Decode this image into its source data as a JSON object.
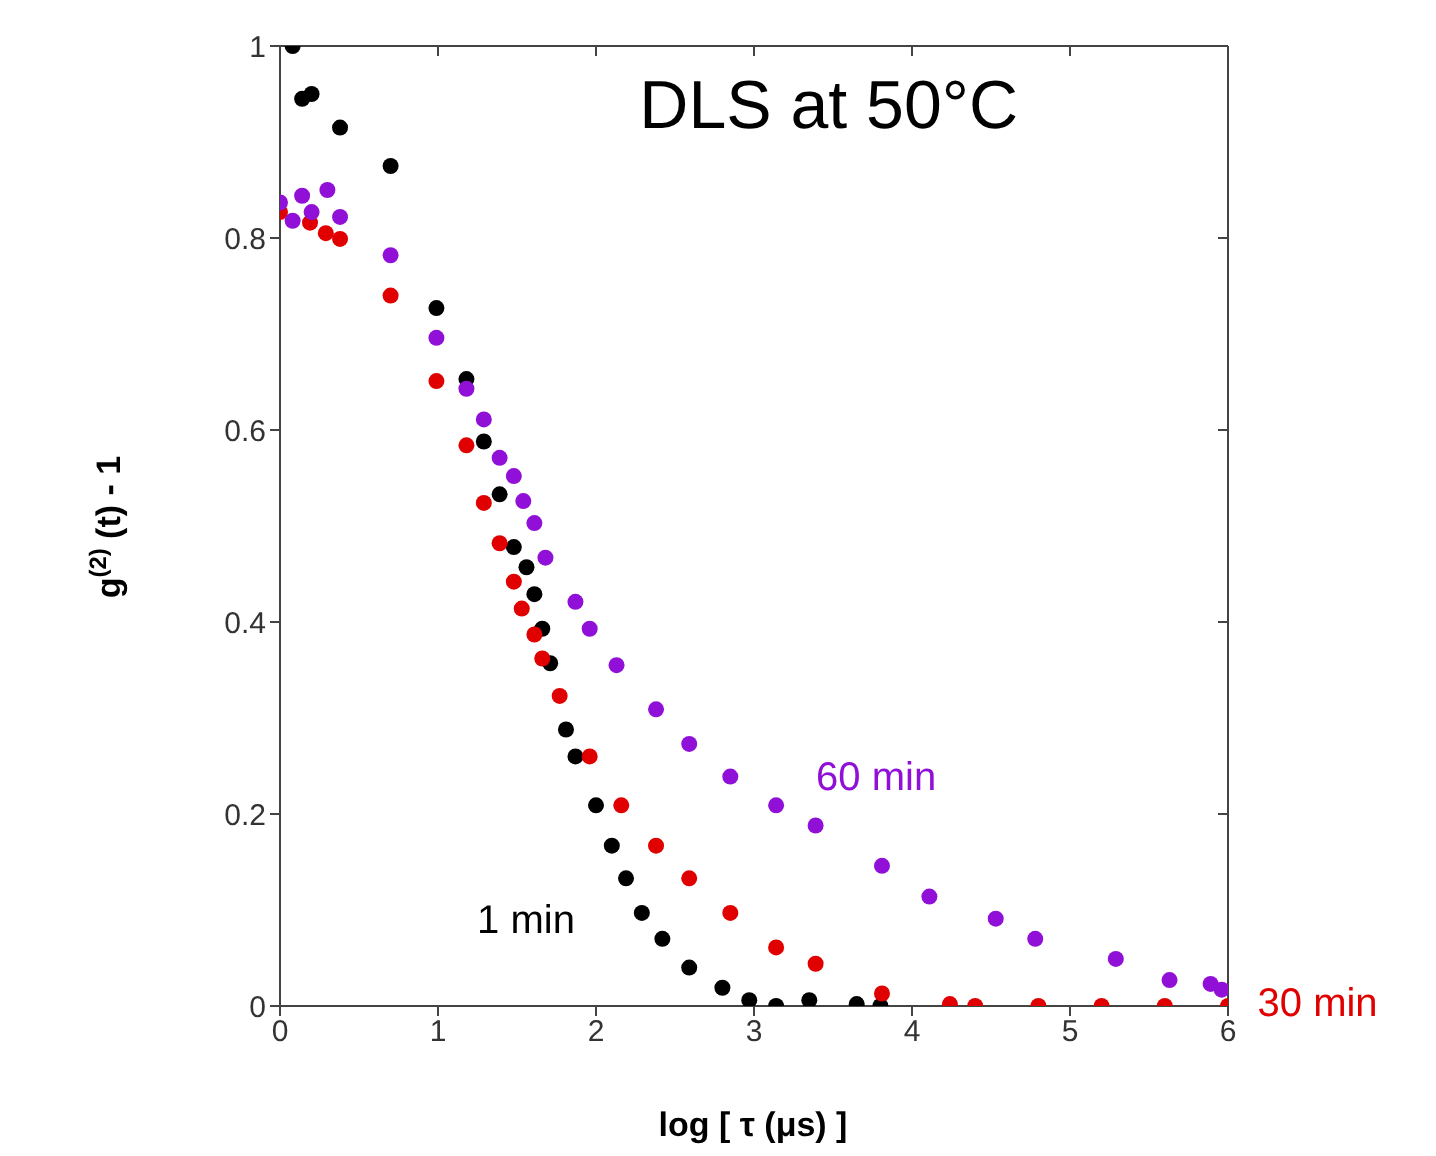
{
  "chart_data": {
    "type": "scatter",
    "title": "DLS at 50°C",
    "xlabel": "log [ τ (μs) ]",
    "ylabel": "g$^{(2)}$ (t) - 1",
    "xlim": [
      0,
      6
    ],
    "ylim": [
      0,
      1
    ],
    "xticks": [
      0,
      1,
      2,
      3,
      4,
      5,
      6
    ],
    "yticks": [
      0,
      0.2,
      0.4,
      0.6,
      0.8,
      1
    ],
    "legend": false,
    "marker": "circle",
    "series": [
      {
        "name": "1 min",
        "color": "#000000",
        "x": [
          0.08,
          0.14,
          0.2,
          0.38,
          0.7,
          0.99,
          1.18,
          1.29,
          1.39,
          1.48,
          1.56,
          1.61,
          1.66,
          1.71,
          1.81,
          1.87,
          2.0,
          2.1,
          2.19,
          2.29,
          2.42,
          2.59,
          2.8,
          2.97,
          3.14,
          3.35,
          3.65,
          3.8
        ],
        "values": [
          1.0,
          0.945,
          0.95,
          0.915,
          0.875,
          0.727,
          0.653,
          0.588,
          0.533,
          0.478,
          0.457,
          0.429,
          0.393,
          0.357,
          0.288,
          0.26,
          0.209,
          0.167,
          0.133,
          0.097,
          0.07,
          0.04,
          0.019,
          0.006,
          0,
          0.006,
          0.002,
          0
        ]
      },
      {
        "name": "30 min",
        "color": "#e00000",
        "x": [
          0,
          0.19,
          0.29,
          0.38,
          0.7,
          0.99,
          1.18,
          1.29,
          1.39,
          1.48,
          1.53,
          1.61,
          1.66,
          1.77,
          1.96,
          2.16,
          2.38,
          2.59,
          2.85,
          3.14,
          3.39,
          3.81,
          4.24,
          4.4,
          4.8,
          5.2,
          5.6,
          6.0
        ],
        "values": [
          0.827,
          0.816,
          0.805,
          0.799,
          0.74,
          0.651,
          0.584,
          0.524,
          0.482,
          0.442,
          0.414,
          0.387,
          0.362,
          0.323,
          0.26,
          0.209,
          0.167,
          0.133,
          0.097,
          0.061,
          0.044,
          0.013,
          0.002,
          0,
          0,
          0,
          0,
          0
        ]
      },
      {
        "name": "60 min",
        "color": "#9010d8",
        "x": [
          0,
          0.08,
          0.14,
          0.2,
          0.3,
          0.38,
          0.7,
          0.99,
          1.18,
          1.29,
          1.39,
          1.48,
          1.54,
          1.61,
          1.68,
          1.87,
          1.96,
          2.13,
          2.38,
          2.59,
          2.85,
          3.14,
          3.39,
          3.81,
          4.11,
          4.53,
          4.78,
          5.29,
          5.63,
          5.89,
          5.96
        ],
        "values": [
          0.837,
          0.818,
          0.844,
          0.827,
          0.85,
          0.822,
          0.782,
          0.696,
          0.643,
          0.611,
          0.571,
          0.552,
          0.526,
          0.503,
          0.467,
          0.421,
          0.393,
          0.355,
          0.309,
          0.273,
          0.239,
          0.209,
          0.188,
          0.146,
          0.114,
          0.091,
          0.07,
          0.049,
          0.027,
          0.023,
          0.017
        ]
      }
    ]
  }
}
